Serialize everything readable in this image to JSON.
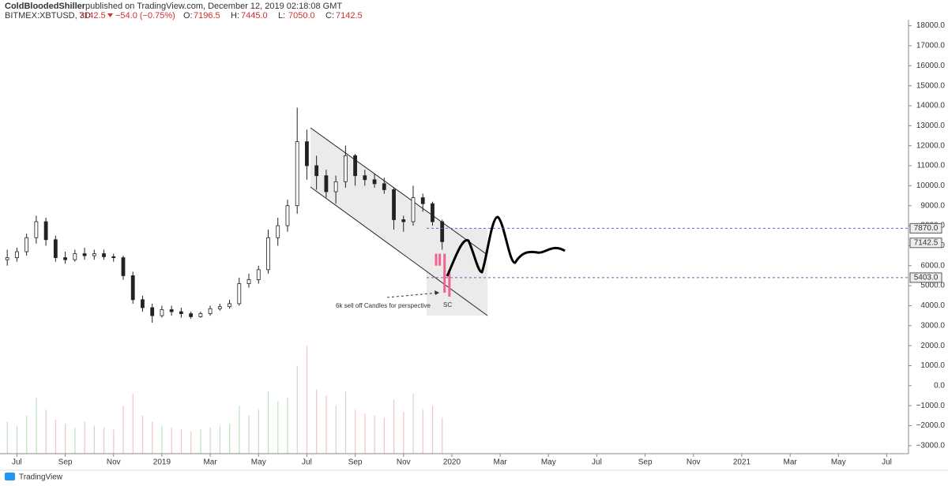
{
  "header": {
    "publisher": "ColdBloodedShiller",
    "published": "published on TradingView.com, December 12, 2019 02:18:08 GMT",
    "symbol": "BITMEX:XBTUSD, 3D",
    "last": "7142.5",
    "change": "−54.0 (−0.75%)",
    "ohlc": [
      {
        "label": "O:",
        "value": "7196.5"
      },
      {
        "label": "H:",
        "value": "7445.0"
      },
      {
        "label": "L:",
        "value": "7050.0"
      },
      {
        "label": "C:",
        "value": "7142.5"
      }
    ]
  },
  "footer": {
    "brand": "TradingView"
  },
  "chart_data": {
    "type": "candlestick",
    "xlim": [
      -0.7,
      36.9
    ],
    "ylim": [
      -3400,
      18300
    ],
    "xticks": [
      {
        "value": 0,
        "label": "Jul"
      },
      {
        "value": 2,
        "label": "Sep"
      },
      {
        "value": 4,
        "label": "Nov"
      },
      {
        "value": 6,
        "label": "2019"
      },
      {
        "value": 8,
        "label": "Mar"
      },
      {
        "value": 10,
        "label": "May"
      },
      {
        "value": 12,
        "label": "Jul"
      },
      {
        "value": 14,
        "label": "Sep"
      },
      {
        "value": 16,
        "label": "Nov"
      },
      {
        "value": 18,
        "label": "2020"
      },
      {
        "value": 20,
        "label": "Mar"
      },
      {
        "value": 22,
        "label": "May"
      },
      {
        "value": 24,
        "label": "Jul"
      },
      {
        "value": 26,
        "label": "Sep"
      },
      {
        "value": 28,
        "label": "Nov"
      },
      {
        "value": 30,
        "label": "2021"
      },
      {
        "value": 32,
        "label": "Mar"
      },
      {
        "value": 34,
        "label": "May"
      },
      {
        "value": 36,
        "label": "Jul"
      }
    ],
    "yticks": [
      {
        "value": 18000,
        "label": "18000.0"
      },
      {
        "value": 17000,
        "label": "17000.0"
      },
      {
        "value": 16000,
        "label": "16000.0"
      },
      {
        "value": 15000,
        "label": "15000.0"
      },
      {
        "value": 14000,
        "label": "14000.0"
      },
      {
        "value": 13000,
        "label": "13000.0"
      },
      {
        "value": 12000,
        "label": "12000.0"
      },
      {
        "value": 11000,
        "label": "11000.0"
      },
      {
        "value": 10000,
        "label": "10000.0"
      },
      {
        "value": 9000,
        "label": "9000.0"
      },
      {
        "value": 8000,
        "label": "8000.0"
      },
      {
        "value": 7000,
        "label": "7000.0"
      },
      {
        "value": 6000,
        "label": "6000.0"
      },
      {
        "value": 5000,
        "label": "5000.0"
      },
      {
        "value": 4000,
        "label": "4000.0"
      },
      {
        "value": 3000,
        "label": "3000.0"
      },
      {
        "value": 2000,
        "label": "2000.0"
      },
      {
        "value": 1000,
        "label": "1000.0"
      },
      {
        "value": 0,
        "label": "0.0"
      },
      {
        "value": -1000,
        "label": "−1000.0"
      },
      {
        "value": -2000,
        "label": "−2000.0"
      },
      {
        "value": -3000,
        "label": "−3000.0"
      }
    ],
    "x": [
      -0.4,
      0,
      0.4,
      0.8,
      1.2,
      1.6,
      2,
      2.4,
      2.8,
      3.2,
      3.6,
      4,
      4.4,
      4.8,
      5.2,
      5.6,
      6,
      6.4,
      6.8,
      7.2,
      7.6,
      8,
      8.4,
      8.8,
      9.2,
      9.6,
      10,
      10.4,
      10.8,
      11.2,
      11.6,
      12,
      12.4,
      12.8,
      13.2,
      13.6,
      14,
      14.4,
      14.8,
      15.2,
      15.6,
      16,
      16.4,
      16.8,
      17.2,
      17.6
    ],
    "open": [
      6300,
      6400,
      6700,
      7400,
      8200,
      7300,
      6400,
      6300,
      6600,
      6500,
      6600,
      6450,
      6400,
      5500,
      4300,
      3900,
      3500,
      3800,
      3700,
      3600,
      3450,
      3600,
      3850,
      3950,
      4100,
      5100,
      5300,
      5800,
      7400,
      8000,
      9000,
      12200,
      11000,
      10500,
      9700,
      10200,
      11500,
      10500,
      10300,
      10100,
      9800,
      8300,
      8200,
      9400,
      9100,
      8200
    ],
    "high": [
      6800,
      6900,
      7600,
      8500,
      8400,
      7500,
      6700,
      6800,
      6900,
      6800,
      6800,
      6600,
      6500,
      5700,
      4500,
      4100,
      4000,
      4000,
      3900,
      3700,
      3700,
      4000,
      4100,
      4300,
      5400,
      5600,
      6000,
      7800,
      8400,
      9300,
      13900,
      12800,
      11500,
      10800,
      10500,
      12000,
      11600,
      10800,
      10600,
      10400,
      9900,
      8500,
      10000,
      9600,
      9200,
      8300
    ],
    "low": [
      6000,
      6200,
      6500,
      7100,
      7000,
      6200,
      6100,
      6200,
      6300,
      6300,
      6300,
      6200,
      5300,
      4100,
      3700,
      3150,
      3400,
      3500,
      3400,
      3350,
      3400,
      3500,
      3750,
      3850,
      4000,
      4900,
      5100,
      5600,
      7000,
      7700,
      8600,
      10300,
      9800,
      9400,
      9100,
      9900,
      10000,
      10000,
      9900,
      9600,
      7800,
      7700,
      8000,
      8700,
      8000,
      6800
    ],
    "close": [
      6400,
      6700,
      7400,
      8200,
      7300,
      6400,
      6300,
      6600,
      6500,
      6600,
      6450,
      6400,
      5500,
      4300,
      3900,
      3500,
      3800,
      3700,
      3600,
      3450,
      3600,
      3850,
      3950,
      4100,
      5100,
      5300,
      5800,
      7400,
      8000,
      9000,
      12200,
      11000,
      10500,
      9700,
      10200,
      11500,
      10500,
      10300,
      10100,
      9800,
      8300,
      8200,
      9400,
      9100,
      8200,
      7200
    ],
    "up_color": "#ffffff",
    "down_color": "#222222",
    "edge_color": "#222222",
    "volume": [
      -1800,
      -2000,
      -1500,
      -600,
      -1200,
      -1700,
      -1900,
      -2100,
      -1800,
      -2000,
      -2100,
      -2200,
      -1000,
      -400,
      -1500,
      -1800,
      -2000,
      -2100,
      -2200,
      -2300,
      -2200,
      -2100,
      -2000,
      -1900,
      -1000,
      -1500,
      -1200,
      -300,
      -800,
      -600,
      1000,
      2000,
      -200,
      -500,
      -1000,
      -300,
      -1200,
      -1400,
      -1500,
      -1600,
      -700,
      -1300,
      -400,
      -1200,
      -1000,
      -1600
    ],
    "volume_up_color": "#bfe0bf",
    "volume_down_color": "#f2c4c4",
    "sell_off": {
      "color": "#f06292",
      "x": [
        17.35,
        17.5,
        17.7,
        17.9
      ],
      "open": [
        6600,
        6600,
        6600,
        5650
      ],
      "close": [
        6000,
        6000,
        4650,
        4450
      ]
    },
    "levels": [
      {
        "value": 7870,
        "label": "7870.0"
      },
      {
        "value": 5403,
        "label": "5403.0"
      }
    ],
    "last_price": 7142.5,
    "annotations": [
      "6k sell off Candles for perspective",
      "SC"
    ]
  }
}
